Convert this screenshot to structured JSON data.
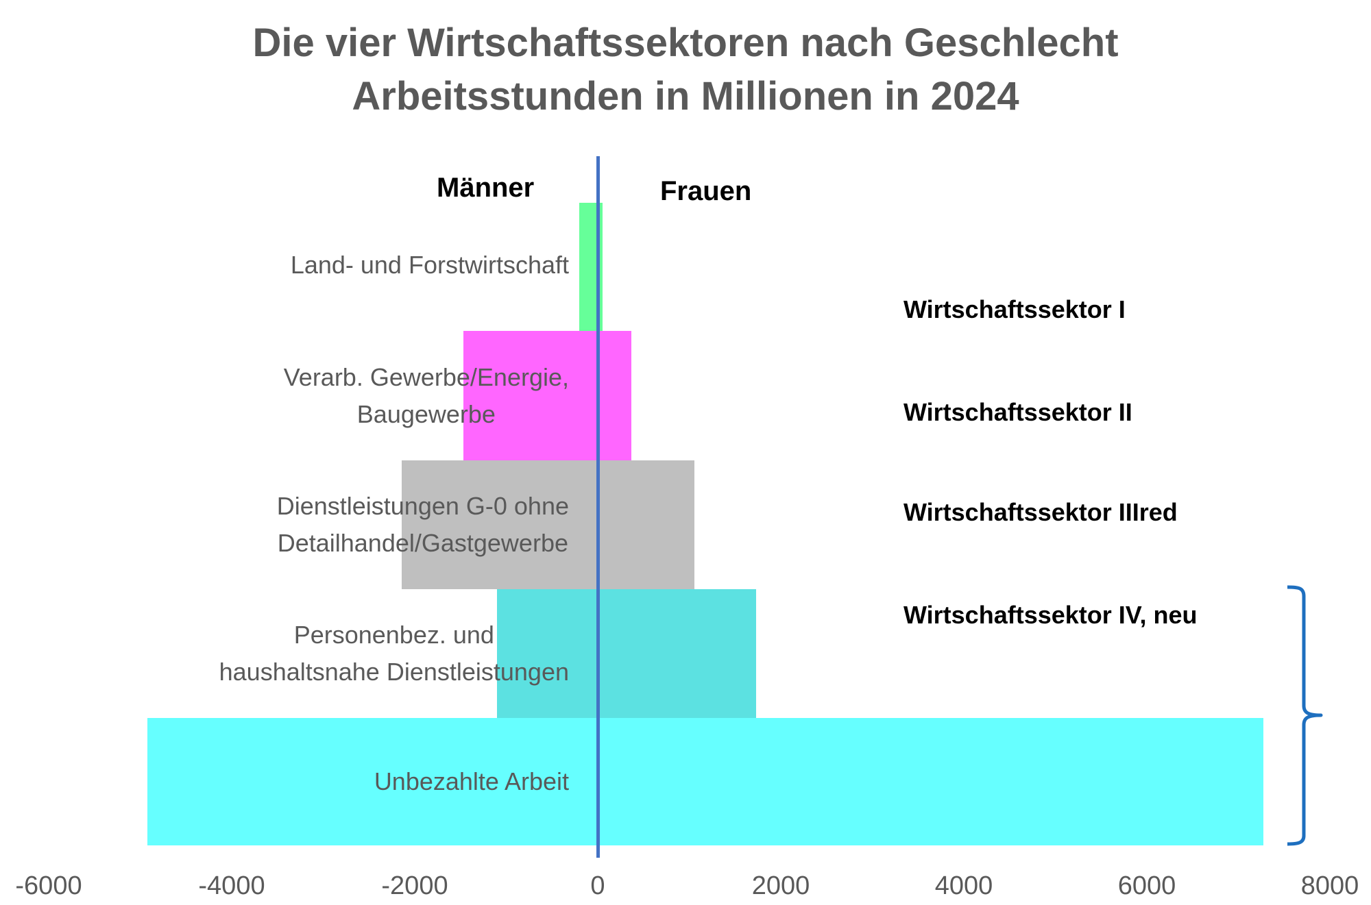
{
  "title": {
    "line1": "Die vier Wirtschaftssektoren nach Geschlecht",
    "line2": "Arbeitsstunden in Millionen in 2024"
  },
  "gender_labels": {
    "left": "Männer",
    "right": "Frauen"
  },
  "sector_labels": [
    "Wirtschaftssektor I",
    "Wirtschaftssektor II",
    "Wirtschaftssektor IIIred",
    "Wirtschaftssektor IV, neu"
  ],
  "colors": {
    "axis_line": "#4472C4",
    "brace": "#1E6FBF",
    "text_gray": "#595959"
  },
  "chart_data": {
    "type": "bar",
    "orientation": "horizontal",
    "subtype": "population-pyramid (diverging, overlapping)",
    "title": "Die vier Wirtschaftssektoren nach Geschlecht Arbeitsstunden in Millionen in 2024",
    "xlabel": "",
    "ylabel": "",
    "xlim": [
      -6000,
      8000
    ],
    "xticks": [
      -6000,
      -4000,
      -2000,
      0,
      2000,
      4000,
      6000,
      8000
    ],
    "grid": false,
    "legend": "none (left side = Männer, right side = Frauen)",
    "categories": [
      "Land- und Forstwirtschaft",
      "Verarb. Gewerbe/Energie, Baugewerbe",
      "Dienstleistungen G-0 ohne Detailhandel/Gastgewerbe",
      "Personenbez. und haushaltsnahe Dienstleistungen",
      "Unbezahlte Arbeit"
    ],
    "category_lines": [
      [
        "Land- und Forstwirtschaft"
      ],
      [
        "Verarb. Gewerbe/Energie,",
        "Baugewerbe"
      ],
      [
        "Dienstleistungen G-0 ohne",
        "Detailhandel/Gastgewerbe"
      ],
      [
        "Personenbez. und",
        "haushaltsnahe Dienstleistungen"
      ],
      [
        "Unbezahlte Arbeit"
      ]
    ],
    "series": [
      {
        "name": "Männer",
        "values": [
          -200,
          -1470,
          -2140,
          -1100,
          -4920
        ]
      },
      {
        "name": "Frauen",
        "values": [
          50,
          370,
          1060,
          1730,
          7270
        ]
      }
    ],
    "bar_colors": [
      "#66FF99",
      "#FF66FF",
      "#BFBFBF",
      "#5CE1E1",
      "#66FFFF"
    ],
    "annotations": [
      "Wirtschaftssektor I",
      "Wirtschaftssektor II",
      "Wirtschaftssektor IIIred",
      "Wirtschaftssektor IV, neu",
      "brace grouping Personenbez. + Unbezahlte Arbeit"
    ]
  }
}
